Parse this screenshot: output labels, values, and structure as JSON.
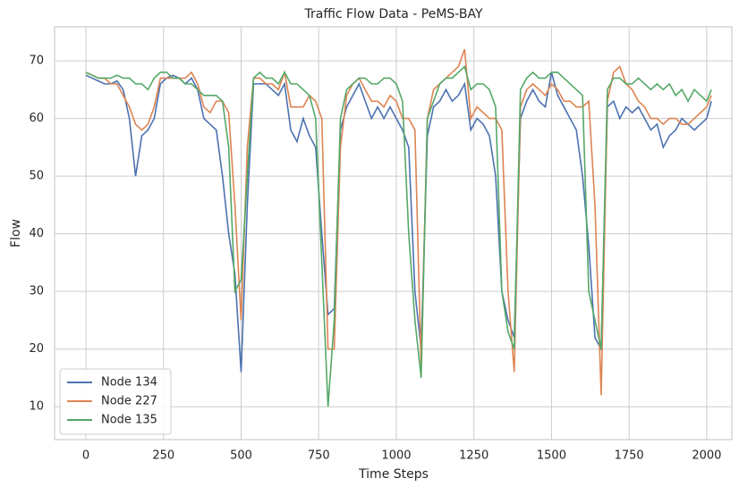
{
  "chart_data": {
    "type": "line",
    "title": "Traffic Flow Data - PeMS-BAY",
    "xlabel": "Time Steps",
    "ylabel": "Flow",
    "x": [
      0,
      20,
      40,
      60,
      80,
      100,
      120,
      140,
      160,
      180,
      200,
      220,
      240,
      260,
      280,
      300,
      320,
      340,
      360,
      380,
      400,
      420,
      440,
      460,
      480,
      500,
      520,
      540,
      560,
      580,
      600,
      620,
      640,
      660,
      680,
      700,
      720,
      740,
      760,
      780,
      800,
      820,
      840,
      860,
      880,
      900,
      920,
      940,
      960,
      980,
      1000,
      1020,
      1040,
      1060,
      1080,
      1100,
      1120,
      1140,
      1160,
      1180,
      1200,
      1220,
      1240,
      1260,
      1280,
      1300,
      1320,
      1340,
      1360,
      1380,
      1400,
      1420,
      1440,
      1460,
      1480,
      1500,
      1520,
      1540,
      1560,
      1580,
      1600,
      1620,
      1640,
      1660,
      1680,
      1700,
      1720,
      1740,
      1760,
      1780,
      1800,
      1820,
      1840,
      1860,
      1880,
      1900,
      1920,
      1940,
      1960,
      1980,
      2000,
      2015
    ],
    "series": [
      {
        "name": "Node 134",
        "color": "#4c72b0",
        "values": [
          67.5,
          67,
          66.5,
          66,
          66,
          66.5,
          65,
          60,
          50,
          57,
          58,
          60,
          66,
          67,
          67.5,
          67,
          66,
          67,
          65,
          60,
          59,
          58,
          50,
          40,
          33,
          16,
          45,
          66,
          66,
          66,
          65,
          64,
          66,
          58,
          56,
          60,
          57,
          55,
          40,
          26,
          27,
          58,
          62,
          64,
          66,
          63,
          60,
          62,
          60,
          62,
          60,
          58,
          55,
          30,
          20,
          57,
          62,
          63,
          65,
          63,
          64,
          66,
          58,
          60,
          59,
          57,
          50,
          30,
          25,
          22,
          60,
          63,
          65,
          63,
          62,
          68,
          64,
          62,
          60,
          58,
          50,
          38,
          22,
          20,
          62,
          63,
          60,
          62,
          61,
          62,
          60,
          58,
          59,
          55,
          57,
          58,
          60,
          59,
          58,
          59,
          60,
          63
        ]
      },
      {
        "name": "Node 227",
        "color": "#dd8452",
        "values": [
          68,
          67.5,
          67,
          67,
          66,
          66,
          64,
          62,
          59,
          58,
          59,
          62,
          67,
          67,
          67,
          67,
          67,
          68,
          66,
          62,
          61,
          63,
          63,
          61,
          45,
          25,
          55,
          67,
          67,
          66,
          66,
          65,
          68,
          62,
          62,
          62,
          64,
          63,
          60,
          20,
          20,
          55,
          64,
          66,
          67,
          65,
          63,
          63,
          62,
          64,
          63,
          60,
          60,
          58,
          17,
          60,
          65,
          66,
          67,
          68,
          69,
          72,
          60,
          62,
          61,
          60,
          60,
          58,
          30,
          16,
          62,
          65,
          66,
          65,
          64,
          66,
          65,
          63,
          63,
          62,
          62,
          63,
          45,
          12,
          63,
          68,
          69,
          66,
          65,
          63,
          62,
          60,
          60,
          59,
          60,
          60,
          59,
          59,
          60,
          61,
          62,
          64
        ]
      },
      {
        "name": "Node 135",
        "color": "#55a868",
        "values": [
          68,
          67.5,
          67,
          67,
          67,
          67.5,
          67,
          67,
          66,
          66,
          65,
          67,
          68,
          68,
          67,
          67,
          66,
          66,
          65,
          64,
          64,
          64,
          63,
          55,
          30,
          32,
          50,
          67,
          68,
          67,
          67,
          66,
          68,
          66,
          66,
          65,
          64,
          60,
          35,
          10,
          25,
          60,
          65,
          66,
          67,
          67,
          66,
          66,
          67,
          67,
          66,
          63,
          40,
          25,
          15,
          60,
          63,
          66,
          67,
          67,
          68,
          69,
          65,
          66,
          66,
          65,
          62,
          30,
          23,
          20,
          65,
          67,
          68,
          67,
          67,
          68,
          68,
          67,
          66,
          65,
          64,
          30,
          25,
          20,
          65,
          67,
          67,
          66,
          66,
          67,
          66,
          65,
          66,
          65,
          66,
          64,
          65,
          63,
          65,
          64,
          63,
          65
        ]
      }
    ],
    "xlim": [
      -101,
      2081
    ],
    "ylim": [
      4.3,
      75.9
    ],
    "xticks": [
      0,
      250,
      500,
      750,
      1000,
      1250,
      1500,
      1750,
      2000
    ],
    "yticks": [
      10,
      20,
      30,
      40,
      50,
      60,
      70
    ],
    "grid": true,
    "legend": "lower left"
  }
}
